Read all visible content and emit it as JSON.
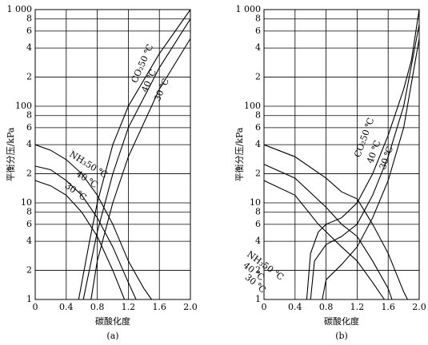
{
  "chart_data": [
    {
      "type": "line",
      "caption": "(a)",
      "x_label": "碳酸化度",
      "y_label": "平衡分压/kPa",
      "yscale": "log",
      "grid": true,
      "xlim": [
        0,
        2
      ],
      "ylim": [
        1,
        1000
      ],
      "xticks": [
        0,
        0.4,
        0.8,
        1.2,
        1.6,
        {
          "value": 2,
          "label": "2.0"
        }
      ],
      "yticks": [
        1,
        2,
        4,
        6,
        8,
        10,
        {
          "value": 20,
          "label": "2"
        },
        {
          "value": 40,
          "label": "4"
        },
        {
          "value": 60,
          "label": "6"
        },
        {
          "value": 80,
          "label": "8"
        },
        100,
        {
          "value": 200,
          "label": "2"
        },
        {
          "value": 400,
          "label": "4"
        },
        {
          "value": 600,
          "label": "6"
        },
        {
          "value": 800,
          "label": "8"
        },
        {
          "value": 1000,
          "label": "1 000"
        }
      ],
      "series": [
        {
          "name": "NH₃50 ℃",
          "color": "#000000",
          "x": [
            0,
            0.2,
            0.4,
            0.6,
            0.8,
            1.0,
            1.2,
            1.4,
            1.5
          ],
          "values": [
            40,
            35,
            28,
            20,
            12,
            6,
            2.5,
            1.3,
            1
          ]
        },
        {
          "name": "40 ℃",
          "color": "#000000",
          "x": [
            0,
            0.2,
            0.4,
            0.6,
            0.8,
            1.0,
            1.2,
            1.3
          ],
          "values": [
            24,
            22,
            17,
            12,
            7,
            3.5,
            1.5,
            1
          ]
        },
        {
          "name": "30 ℃",
          "color": "#000000",
          "x": [
            0,
            0.2,
            0.4,
            0.6,
            0.8,
            1.0,
            1.15
          ],
          "values": [
            17,
            15,
            12,
            8,
            4.5,
            2,
            1
          ]
        },
        {
          "name": "CO₂50 ℃",
          "color": "#000000",
          "x": [
            0.56,
            0.7,
            0.8,
            1.0,
            1.2,
            1.6,
            2.0
          ],
          "values": [
            1,
            4,
            10,
            40,
            100,
            350,
            1000
          ]
        },
        {
          "name": "40 ℃",
          "color": "#000000",
          "x": [
            0.62,
            0.8,
            1.0,
            1.2,
            1.6,
            2.0
          ],
          "values": [
            1,
            5,
            20,
            60,
            250,
            800
          ]
        },
        {
          "name": "30 ℃",
          "color": "#000000",
          "x": [
            0.72,
            0.8,
            1.0,
            1.2,
            1.6,
            2.0
          ],
          "values": [
            1,
            2.5,
            10,
            30,
            150,
            500
          ]
        }
      ]
    },
    {
      "type": "line",
      "caption": "(b)",
      "x_label": "碳酸化度",
      "y_label": "平衡分压/kPa",
      "yscale": "log",
      "grid": true,
      "xlim": [
        0,
        2
      ],
      "ylim": [
        1,
        1000
      ],
      "xticks": [
        0,
        0.4,
        0.8,
        1.2,
        1.6,
        {
          "value": 2,
          "label": "2.0"
        }
      ],
      "yticks": [
        1,
        2,
        4,
        6,
        8,
        10,
        {
          "value": 20,
          "label": "2"
        },
        {
          "value": 40,
          "label": "4"
        },
        {
          "value": 60,
          "label": "6"
        },
        {
          "value": 80,
          "label": "8"
        },
        100,
        {
          "value": 200,
          "label": "2"
        },
        {
          "value": 400,
          "label": "4"
        },
        {
          "value": 600,
          "label": "6"
        },
        {
          "value": 800,
          "label": "8"
        },
        {
          "value": 1000,
          "label": "1 000"
        }
      ],
      "series": [
        {
          "name": "NH₃50 ℃",
          "color": "#000000",
          "x": [
            0,
            0.4,
            0.8,
            1.0,
            1.2,
            1.4,
            1.6,
            1.8,
            1.85
          ],
          "values": [
            40,
            30,
            18,
            13,
            11,
            6,
            3,
            1.2,
            1
          ]
        },
        {
          "name": "40 ℃",
          "color": "#000000",
          "x": [
            0,
            0.4,
            0.8,
            1.0,
            1.2,
            1.4,
            1.6,
            1.65
          ],
          "values": [
            25,
            18,
            9,
            6,
            4.5,
            2.5,
            1.3,
            1
          ]
        },
        {
          "name": "30 ℃",
          "color": "#000000",
          "x": [
            0,
            0.4,
            0.7,
            1.0,
            1.2,
            1.4,
            1.55
          ],
          "values": [
            17,
            12,
            6,
            3.5,
            2.5,
            1.5,
            1
          ]
        },
        {
          "name": "CO₂50 ℃",
          "color": "#000000",
          "x": [
            0.55,
            0.6,
            0.7,
            0.8,
            1.0,
            1.2,
            1.4,
            1.6,
            1.8,
            1.9,
            2.0
          ],
          "values": [
            1,
            3,
            5,
            6,
            7,
            10,
            20,
            50,
            150,
            300,
            1000
          ]
        },
        {
          "name": "40 ℃",
          "color": "#000000",
          "x": [
            0.6,
            0.65,
            0.8,
            1.0,
            1.2,
            1.4,
            1.6,
            1.8,
            2.0
          ],
          "values": [
            1,
            2.5,
            3.7,
            4.5,
            6,
            12,
            30,
            100,
            700
          ]
        },
        {
          "name": "30 ℃",
          "color": "#000000",
          "x": [
            0.75,
            0.8,
            1.0,
            1.2,
            1.4,
            1.6,
            1.8,
            2.0
          ],
          "values": [
            1,
            1.6,
            2.3,
            3.5,
            7,
            17,
            60,
            500
          ]
        }
      ]
    }
  ]
}
